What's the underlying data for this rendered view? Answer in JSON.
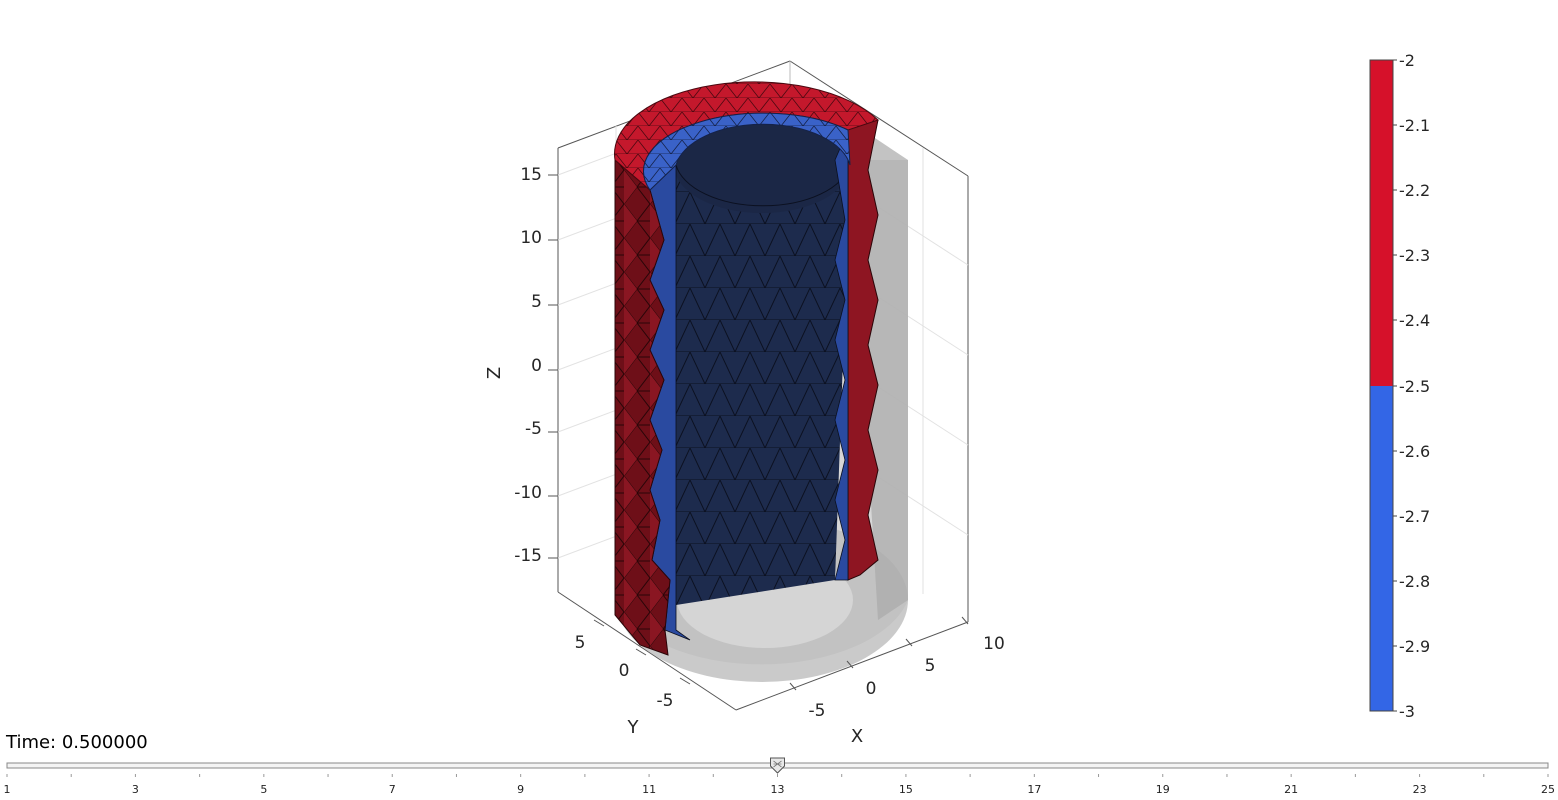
{
  "time_label": "Time: 0.500000",
  "axes": {
    "z_label": "Z",
    "y_label": "Y",
    "x_label": "X",
    "z_ticks": [
      "15",
      "10",
      "5",
      "0",
      "-5",
      "-10",
      "-15"
    ],
    "y_ticks": [
      "5",
      "0",
      "-5"
    ],
    "x_ticks": [
      "-5",
      "0",
      "5",
      "10"
    ]
  },
  "colorbar": {
    "ticks": [
      "-2",
      "-2.1",
      "-2.2",
      "-2.3",
      "-2.4",
      "-2.5",
      "-2.6",
      "-2.7",
      "-2.8",
      "-2.9",
      "-3"
    ],
    "color_high": "#d6112a",
    "color_low": "#3366e6",
    "split_value": -2.5,
    "range": [
      -3,
      -2
    ]
  },
  "slider": {
    "current": 13,
    "min": 1,
    "max": 25,
    "labels": [
      "1",
      "3",
      "5",
      "7",
      "9",
      "11",
      "13",
      "15",
      "17",
      "19",
      "21",
      "23",
      "25"
    ]
  },
  "colors": {
    "outer_red": "#7a1019",
    "inner_blue": "#1f2e52",
    "band_blue": "#2e5bc4",
    "ghost": "#b8b8b8"
  }
}
